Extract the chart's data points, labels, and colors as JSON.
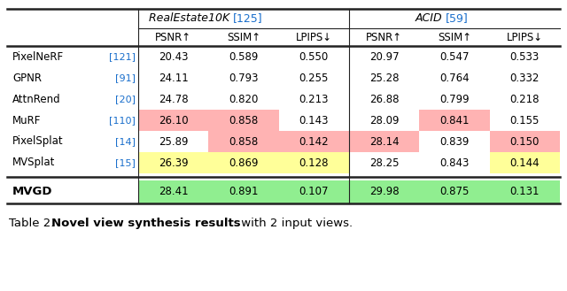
{
  "group1_name": "RealEstate10K",
  "group1_ref": "[125]",
  "group2_name": "ACID",
  "group2_ref": "[59]",
  "col_headers": [
    "PSNR↑",
    "SSIM↑",
    "LPIPS↓",
    "PSNR↑",
    "SSIM↑",
    "LPIPS↓"
  ],
  "rows": [
    {
      "name": "PixelNeRF",
      "ref": "[121]",
      "vals": [
        "20.43",
        "0.589",
        "0.550",
        "20.97",
        "0.547",
        "0.533"
      ],
      "colors": [
        null,
        null,
        null,
        null,
        null,
        null
      ]
    },
    {
      "name": "GPNR",
      "ref": "[91]",
      "vals": [
        "24.11",
        "0.793",
        "0.255",
        "25.28",
        "0.764",
        "0.332"
      ],
      "colors": [
        null,
        null,
        null,
        null,
        null,
        null
      ]
    },
    {
      "name": "AttnRend",
      "ref": "[20]",
      "vals": [
        "24.78",
        "0.820",
        "0.213",
        "26.88",
        "0.799",
        "0.218"
      ],
      "colors": [
        null,
        null,
        null,
        null,
        null,
        null
      ]
    },
    {
      "name": "MuRF",
      "ref": "[110]",
      "vals": [
        "26.10",
        "0.858",
        "0.143",
        "28.09",
        "0.841",
        "0.155"
      ],
      "colors": [
        "#ffb3b3",
        "#ffb3b3",
        null,
        null,
        "#ffb3b3",
        null
      ]
    },
    {
      "name": "PixelSplat",
      "ref": "[14]",
      "vals": [
        "25.89",
        "0.858",
        "0.142",
        "28.14",
        "0.839",
        "0.150"
      ],
      "colors": [
        null,
        "#ffb3b3",
        "#ffb3b3",
        "#ffb3b3",
        null,
        "#ffb3b3"
      ]
    },
    {
      "name": "MVSplat",
      "ref": "[15]",
      "vals": [
        "26.39",
        "0.869",
        "0.128",
        "28.25",
        "0.843",
        "0.144"
      ],
      "colors": [
        "#ffff99",
        "#ffff99",
        "#ffff99",
        null,
        null,
        "#ffff99"
      ]
    }
  ],
  "mvgd_row": {
    "name": "MVGD",
    "vals": [
      "28.41",
      "0.891",
      "0.107",
      "29.98",
      "0.875",
      "0.131"
    ],
    "colors": [
      "#90ee90",
      "#90ee90",
      "#90ee90",
      "#90ee90",
      "#90ee90",
      "#90ee90"
    ]
  },
  "caption_pre": "Table 2. ",
  "caption_bold": "Novel view synthesis results",
  "caption_post": " with 2 input views.",
  "bg_color": "#ffffff",
  "ref_color": "#1a6fcc"
}
